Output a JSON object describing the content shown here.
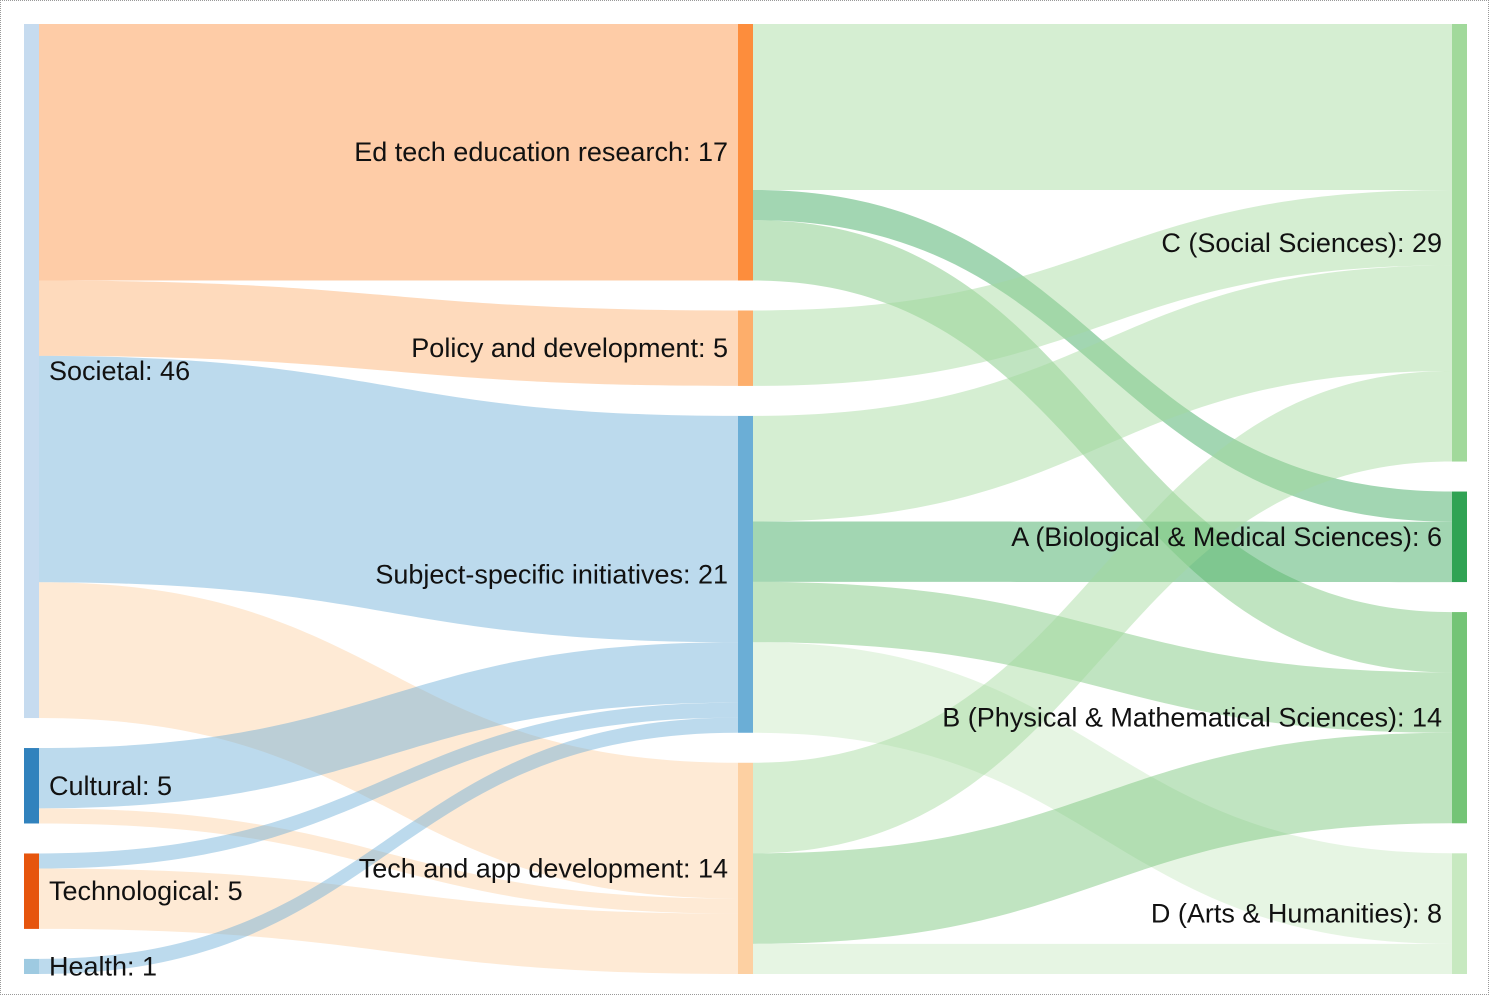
{
  "chart_data": {
    "type": "sankey",
    "nodes": [
      {
        "id": "societal",
        "label": "Societal: 46",
        "value": 46,
        "column": 0,
        "color": "#c6dbef"
      },
      {
        "id": "cultural",
        "label": "Cultural: 5",
        "value": 5,
        "column": 0,
        "color": "#3182bd"
      },
      {
        "id": "technological",
        "label": "Technological: 5",
        "value": 5,
        "column": 0,
        "color": "#e6550d"
      },
      {
        "id": "health",
        "label": "Health: 1",
        "value": 1,
        "column": 0,
        "color": "#9ecae1"
      },
      {
        "id": "edtech",
        "label": "Ed tech education research: 17",
        "value": 17,
        "column": 1,
        "color": "#fd8d3c"
      },
      {
        "id": "policy",
        "label": "Policy and development: 5",
        "value": 5,
        "column": 1,
        "color": "#fdae6b"
      },
      {
        "id": "subject",
        "label": "Subject-specific initiatives: 21",
        "value": 21,
        "column": 1,
        "color": "#6baed6"
      },
      {
        "id": "techapp",
        "label": "Tech and app development: 14",
        "value": 14,
        "column": 1,
        "color": "#fdd0a2"
      },
      {
        "id": "C",
        "label": "C (Social Sciences): 29",
        "value": 29,
        "column": 2,
        "color": "#a1d99b"
      },
      {
        "id": "A",
        "label": "A (Biological & Medical Sciences): 6",
        "value": 6,
        "column": 2,
        "color": "#31a354"
      },
      {
        "id": "B",
        "label": "B (Physical & Mathematical Sciences): 14",
        "value": 14,
        "column": 2,
        "color": "#74c476"
      },
      {
        "id": "D",
        "label": "D (Arts & Humanities): 8",
        "value": 8,
        "column": 2,
        "color": "#c7e9c0"
      }
    ],
    "links": [
      {
        "source": "societal",
        "target": "edtech",
        "value": 17
      },
      {
        "source": "societal",
        "target": "policy",
        "value": 5
      },
      {
        "source": "societal",
        "target": "subject",
        "value": 15
      },
      {
        "source": "societal",
        "target": "techapp",
        "value": 9
      },
      {
        "source": "cultural",
        "target": "subject",
        "value": 4
      },
      {
        "source": "cultural",
        "target": "techapp",
        "value": 1
      },
      {
        "source": "technological",
        "target": "subject",
        "value": 1
      },
      {
        "source": "technological",
        "target": "techapp",
        "value": 4
      },
      {
        "source": "health",
        "target": "subject",
        "value": 1
      },
      {
        "source": "edtech",
        "target": "C",
        "value": 11
      },
      {
        "source": "edtech",
        "target": "A",
        "value": 2
      },
      {
        "source": "edtech",
        "target": "B",
        "value": 4
      },
      {
        "source": "policy",
        "target": "C",
        "value": 5
      },
      {
        "source": "subject",
        "target": "C",
        "value": 7
      },
      {
        "source": "subject",
        "target": "A",
        "value": 4
      },
      {
        "source": "subject",
        "target": "B",
        "value": 4
      },
      {
        "source": "subject",
        "target": "D",
        "value": 6
      },
      {
        "source": "techapp",
        "target": "C",
        "value": 6
      },
      {
        "source": "techapp",
        "target": "B",
        "value": 6
      },
      {
        "source": "techapp",
        "target": "D",
        "value": 2
      }
    ],
    "link_color": "target node color, semi-transparent"
  }
}
